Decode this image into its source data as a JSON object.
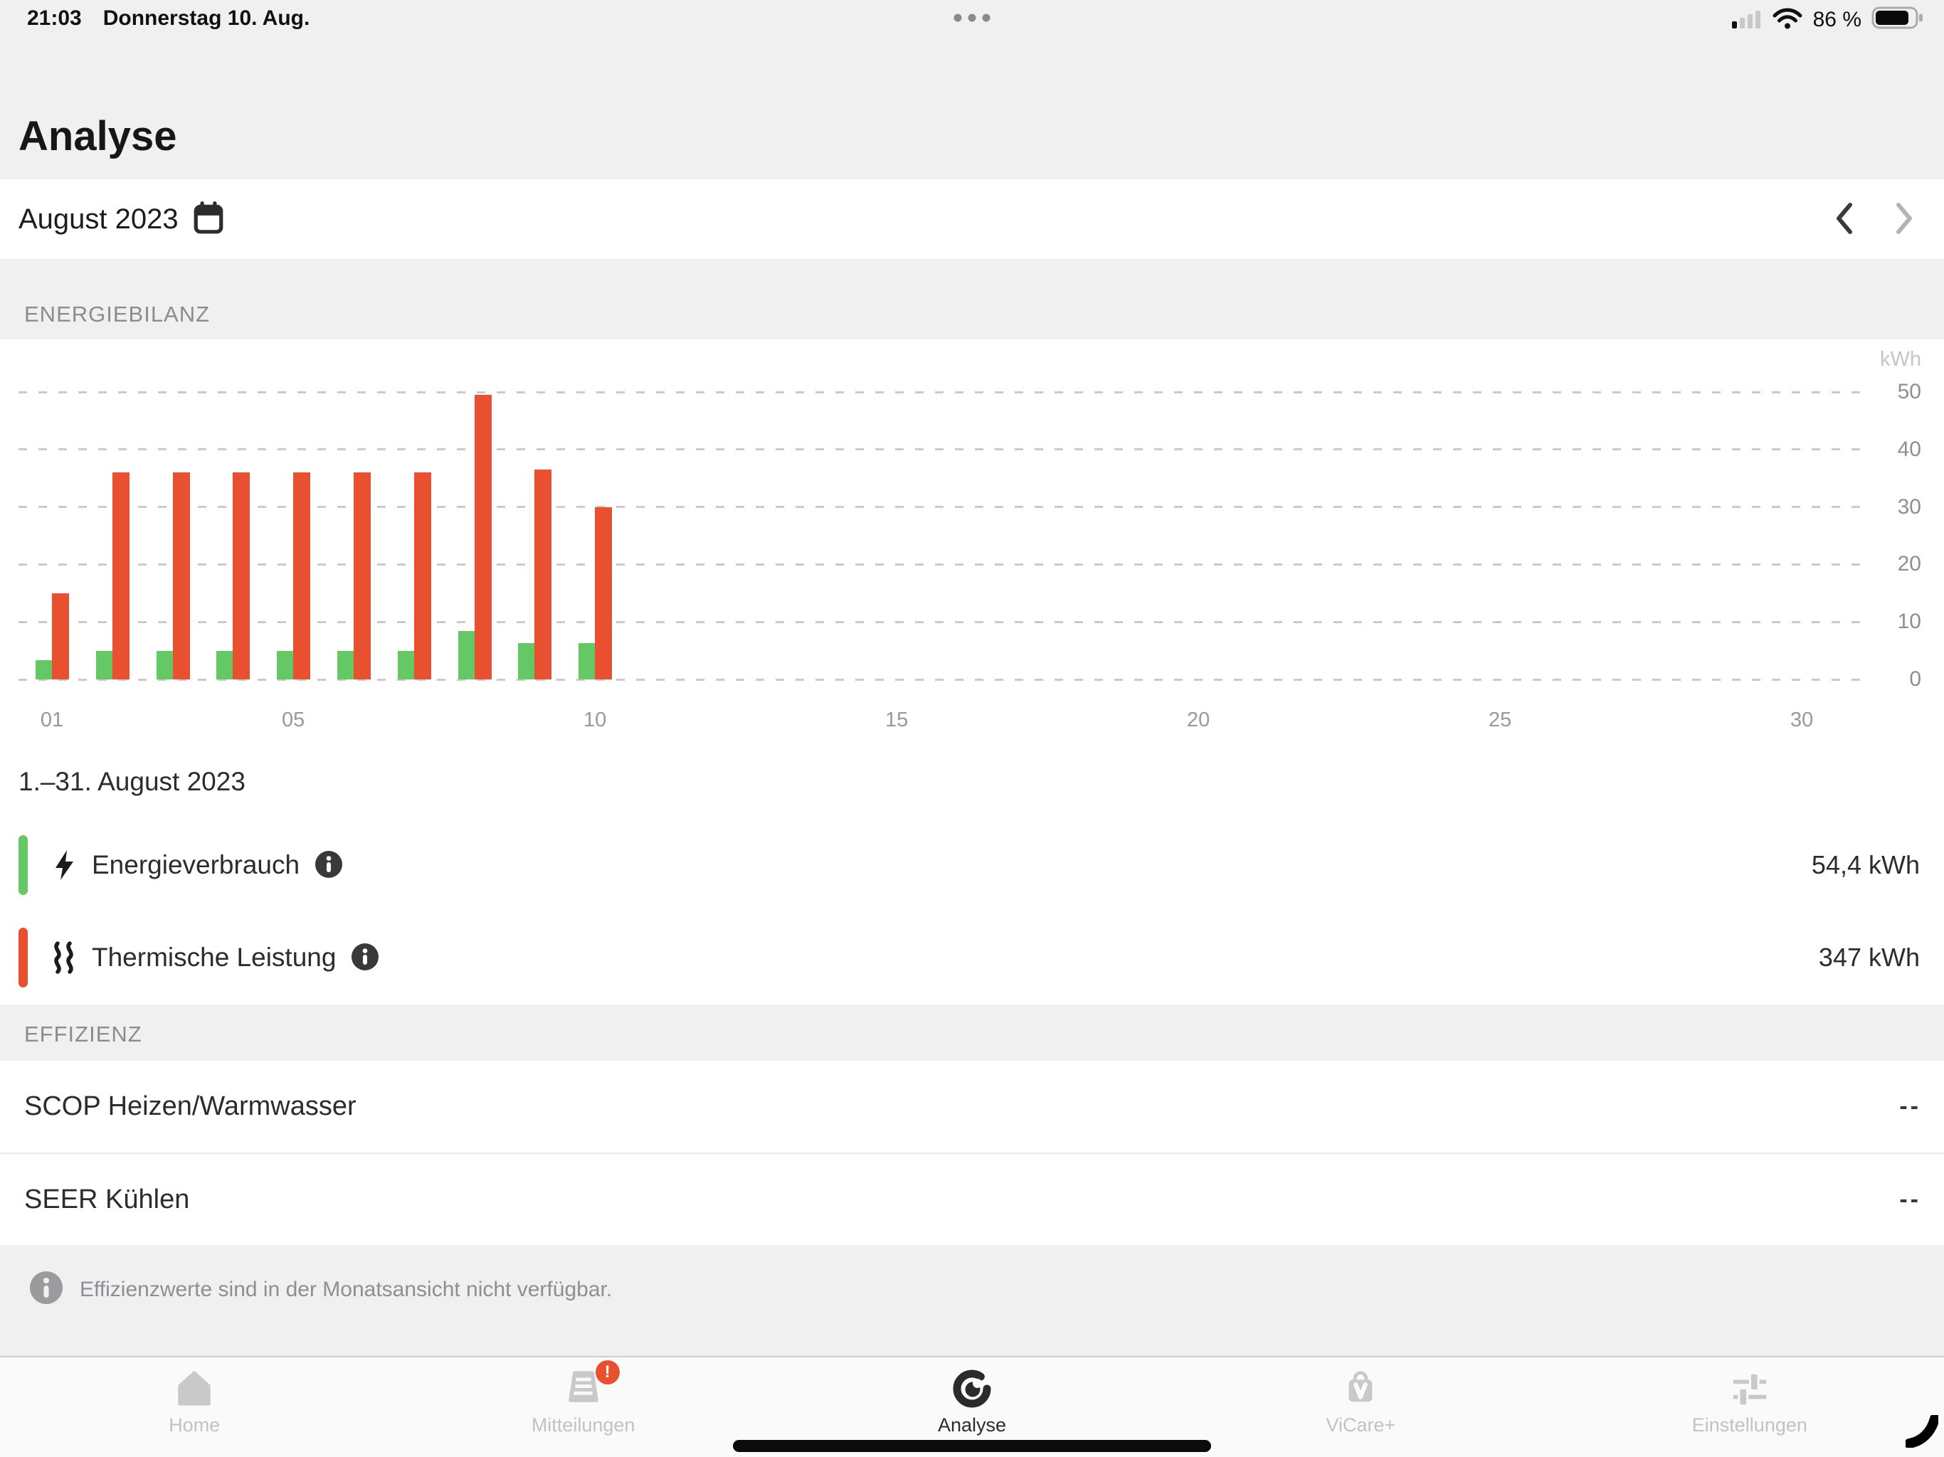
{
  "status_bar": {
    "time": "21:03",
    "date": "Donnerstag 10. Aug.",
    "battery_percent": "86 %"
  },
  "header": {
    "title": "Analyse"
  },
  "date_selector": {
    "label": "August 2023"
  },
  "sections": {
    "energy": "ENERGIEBILANZ",
    "efficiency": "EFFIZIENZ"
  },
  "chart_data": {
    "type": "bar",
    "unit": "kWh",
    "x_range": [
      1,
      31
    ],
    "ylim": [
      0,
      50
    ],
    "yticks": [
      0,
      10,
      20,
      30,
      40,
      50
    ],
    "xticks": [
      {
        "day": 1,
        "label": "01"
      },
      {
        "day": 5,
        "label": "05"
      },
      {
        "day": 10,
        "label": "10"
      },
      {
        "day": 15,
        "label": "15"
      },
      {
        "day": 20,
        "label": "20"
      },
      {
        "day": 25,
        "label": "25"
      },
      {
        "day": 30,
        "label": "30"
      }
    ],
    "days": [
      1,
      2,
      3,
      4,
      5,
      6,
      7,
      8,
      9,
      10
    ],
    "series": [
      {
        "name": "Energieverbrauch",
        "color": "#64c964",
        "values": [
          3.4,
          5,
          5,
          5,
          5,
          5,
          5,
          8.4,
          6.3,
          6.3
        ]
      },
      {
        "name": "Thermische Leistung",
        "color": "#e95030",
        "values": [
          15,
          36,
          36,
          36,
          36,
          36,
          36,
          49.5,
          36.5,
          30
        ]
      }
    ],
    "grid": "dashed-horizontal",
    "legend_position": "below"
  },
  "summary": {
    "range": "1.–31. August 2023"
  },
  "legend": [
    {
      "label": "Energieverbrauch",
      "value": "54,4 kWh",
      "color": "#64c964"
    },
    {
      "label": "Thermische Leistung",
      "value": "347 kWh",
      "color": "#e95030"
    }
  ],
  "efficiency": {
    "rows": [
      {
        "label": "SCOP Heizen/Warmwasser",
        "value": "--"
      },
      {
        "label": "SEER Kühlen",
        "value": "--"
      }
    ]
  },
  "note": {
    "text": "Effizienzwerte sind in der Monatsansicht nicht verfügbar."
  },
  "tab_bar": {
    "active": "Analyse",
    "tabs": [
      {
        "label": "Home"
      },
      {
        "label": "Mitteilungen",
        "badge": "!"
      },
      {
        "label": "Analyse"
      },
      {
        "label": "ViCare+"
      },
      {
        "label": "Einstellungen"
      }
    ]
  }
}
